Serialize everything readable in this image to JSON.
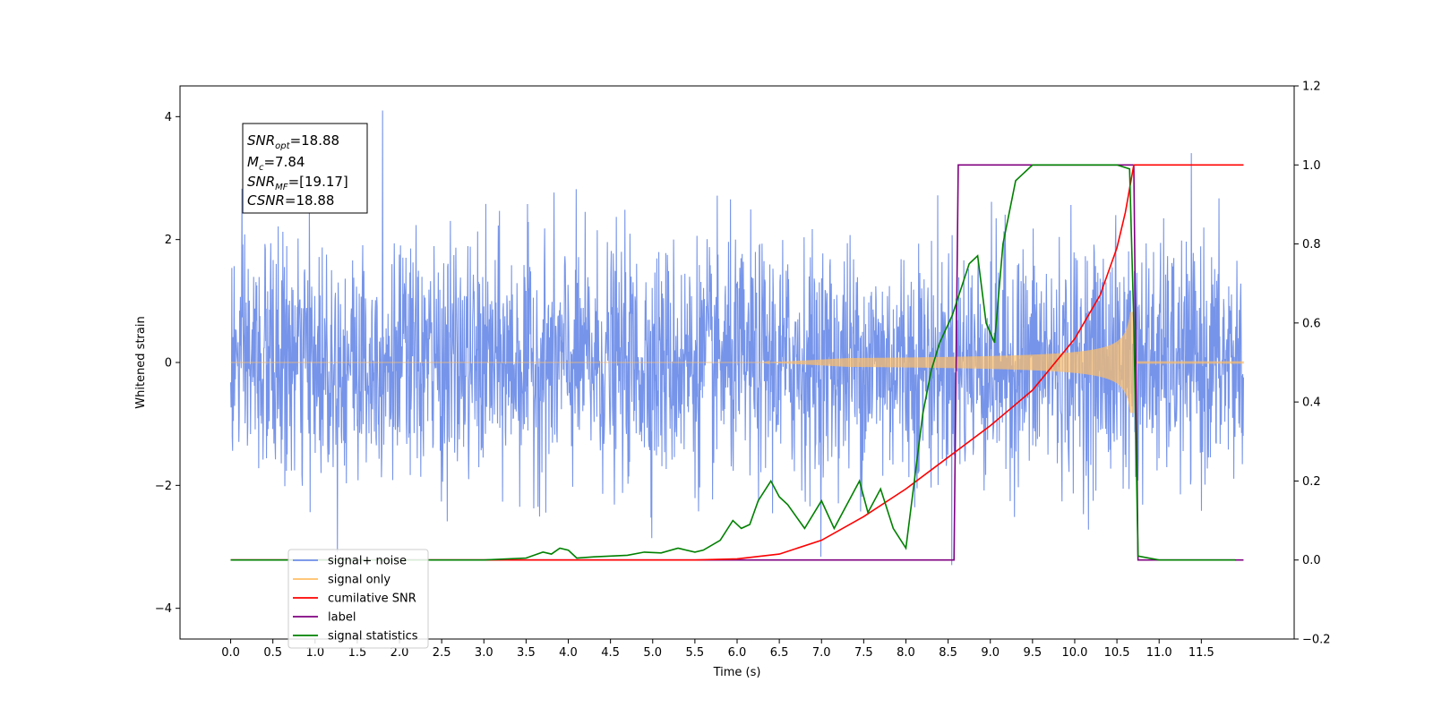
{
  "chart_data": {
    "type": "line",
    "xlabel": "Time (s)",
    "ylabel_left": "Whitened strain",
    "ylabel_right": "",
    "xlim": [
      -0.6,
      12.6
    ],
    "ylim_left": [
      -4.5,
      4.5
    ],
    "ylim_right": [
      -0.2,
      1.2
    ],
    "x_ticks": [
      "0.0",
      "0.5",
      "1.0",
      "1.5",
      "2.0",
      "2.5",
      "3.0",
      "3.5",
      "4.0",
      "4.5",
      "5.0",
      "5.5",
      "6.0",
      "6.5",
      "7.0",
      "7.5",
      "8.0",
      "8.5",
      "9.0",
      "9.5",
      "10.0",
      "10.5",
      "11.0",
      "11.5"
    ],
    "y_ticks_left": [
      "4",
      "2",
      "0",
      "−2",
      "−4"
    ],
    "y_ticks_right": [
      "1.2",
      "1.0",
      "0.8",
      "0.6",
      "0.4",
      "0.2",
      "0.0",
      "−0.2"
    ],
    "legend_position": "lower-left",
    "annotation": {
      "lines": [
        {
          "symbol": "SNR",
          "sub": "opt",
          "text": "=18.88"
        },
        {
          "symbol": "M",
          "sub": "c",
          "text": "=7.84"
        },
        {
          "symbol": "SNR",
          "sub": "MF",
          "text": "=[19.17]"
        },
        {
          "symbol": "CSNR",
          "sub": "",
          "text": "=18.88"
        }
      ]
    },
    "series": [
      {
        "name": "signal+ noise",
        "axis": "left",
        "color": "#6f8ee8",
        "noise_sigma": 1.0,
        "peak_value": 4.1,
        "x_range": [
          0.0,
          12.0
        ]
      },
      {
        "name": "signal only",
        "axis": "left",
        "color": "#ffbf66",
        "chirp_end": 10.7,
        "peak_amplitude": 1.1
      },
      {
        "name": "cumilative SNR",
        "axis": "right",
        "color": "#ff0000",
        "x": [
          0.0,
          5.5,
          6.0,
          6.5,
          7.0,
          7.5,
          8.0,
          8.5,
          9.0,
          9.5,
          10.0,
          10.3,
          10.5,
          10.6,
          10.7,
          10.75,
          12.0
        ],
        "y": [
          0.0,
          0.0,
          0.003,
          0.015,
          0.05,
          0.11,
          0.18,
          0.26,
          0.34,
          0.43,
          0.56,
          0.67,
          0.79,
          0.88,
          1.0,
          1.0,
          1.0
        ]
      },
      {
        "name": "label",
        "axis": "right",
        "color": "#800080",
        "x": [
          0.0,
          8.57,
          8.62,
          10.7,
          10.75,
          12.0
        ],
        "y": [
          0.0,
          0.0,
          1.0,
          1.0,
          0.0,
          0.0
        ]
      },
      {
        "name": "signal statistics",
        "axis": "right",
        "color": "#008000",
        "x": [
          0.0,
          3.0,
          3.5,
          3.7,
          3.8,
          3.9,
          4.0,
          4.1,
          4.3,
          4.5,
          4.7,
          4.9,
          5.1,
          5.3,
          5.5,
          5.6,
          5.8,
          5.95,
          6.05,
          6.15,
          6.25,
          6.4,
          6.5,
          6.6,
          6.8,
          7.0,
          7.15,
          7.3,
          7.45,
          7.55,
          7.7,
          7.85,
          8.0,
          8.1,
          8.2,
          8.3,
          8.4,
          8.55,
          8.75,
          8.85,
          8.95,
          9.05,
          9.15,
          9.3,
          9.5,
          10.0,
          10.5,
          10.65,
          10.7,
          10.75,
          11.0,
          11.9
        ],
        "y": [
          0.0,
          0.0,
          0.005,
          0.02,
          0.015,
          0.03,
          0.025,
          0.005,
          0.008,
          0.01,
          0.012,
          0.02,
          0.018,
          0.03,
          0.02,
          0.025,
          0.05,
          0.1,
          0.08,
          0.09,
          0.15,
          0.2,
          0.16,
          0.14,
          0.08,
          0.15,
          0.08,
          0.14,
          0.2,
          0.12,
          0.18,
          0.08,
          0.03,
          0.2,
          0.37,
          0.48,
          0.55,
          0.62,
          0.75,
          0.77,
          0.6,
          0.55,
          0.8,
          0.96,
          1.0,
          1.0,
          1.0,
          0.99,
          0.6,
          0.01,
          0.0,
          0.0
        ]
      }
    ]
  }
}
